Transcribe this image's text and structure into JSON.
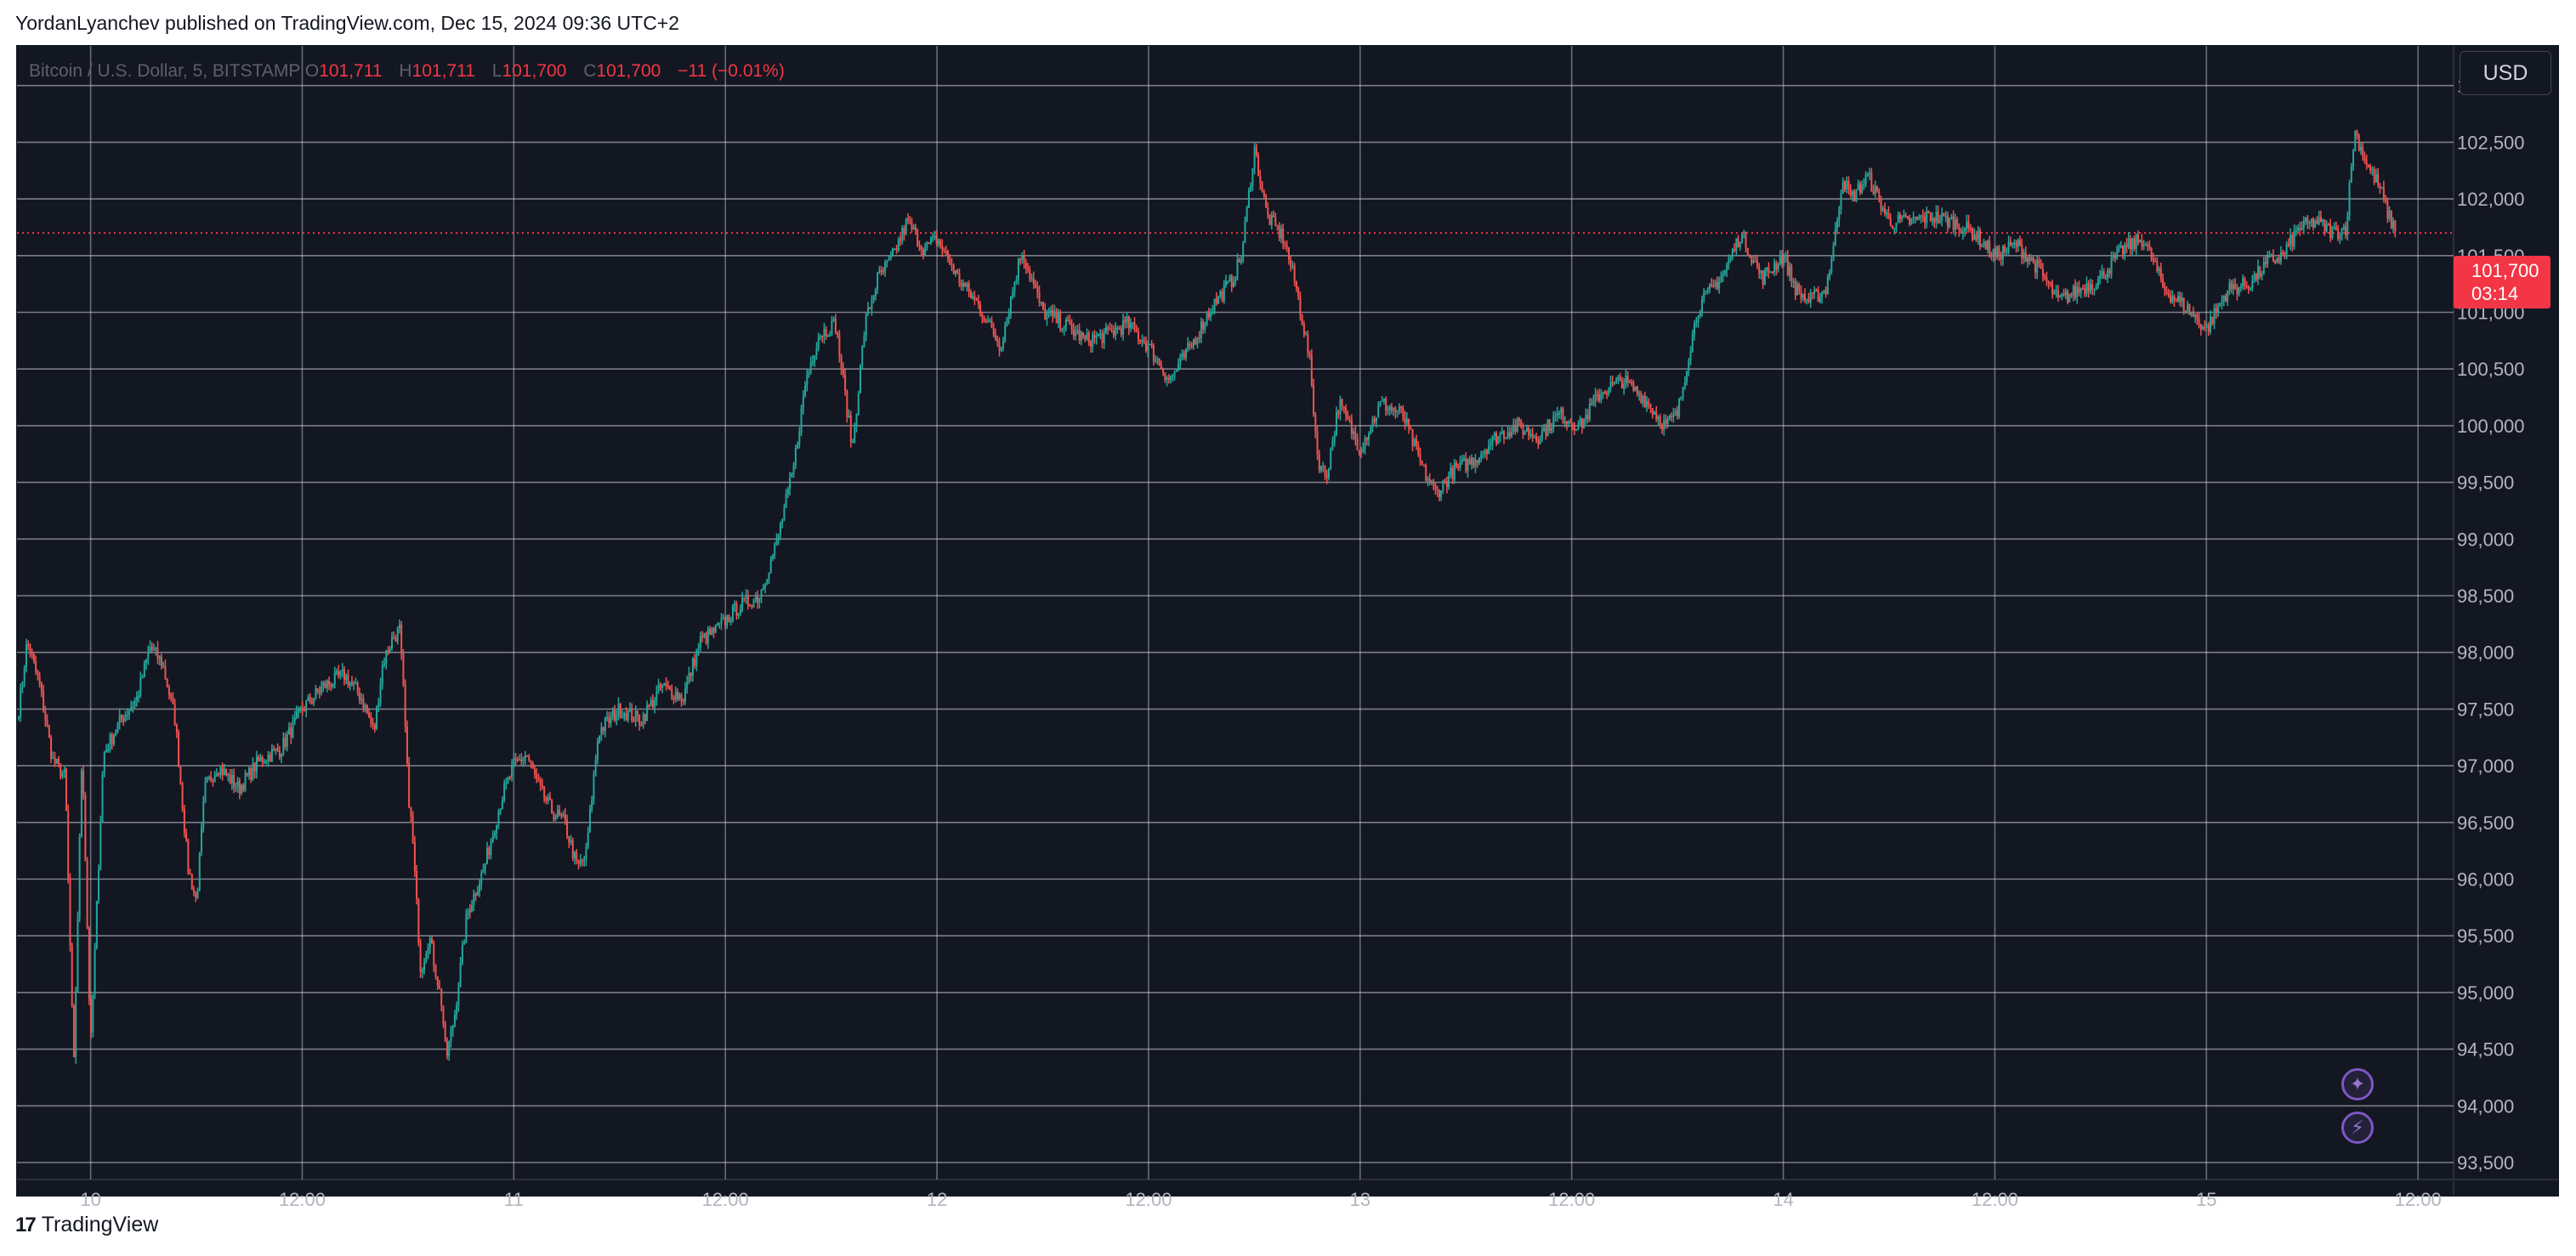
{
  "header": {
    "published_line": "YordanLyanchev published on TradingView.com, Dec 15, 2024 09:36 UTC+2"
  },
  "legend": {
    "symbol": "Bitcoin / U.S. Dollar, 5, BITSTAMP",
    "open_label": "O",
    "open": "101,711",
    "high_label": "H",
    "high": "101,711",
    "low_label": "L",
    "low": "101,700",
    "close_label": "C",
    "close": "101,700",
    "change": "−11 (−0.01%)"
  },
  "currency": "USD",
  "price_tag": {
    "price": "101,700",
    "countdown": "03:14"
  },
  "brand": {
    "name": "TradingView"
  },
  "icons": {
    "sparkle": "sparkle-icon",
    "lightning": "lightning-icon",
    "logo": "tradingview-logo-icon"
  },
  "colors": {
    "background": "#131722",
    "up": "#26a69a",
    "down": "#ef5350",
    "grid": "#d1d4dc",
    "axis_text": "#b2b5be",
    "price_line": "#f23645",
    "accent": "#7e57c2"
  },
  "chart_data": {
    "type": "candlestick",
    "title": "Bitcoin / U.S. Dollar, 5, BITSTAMP",
    "interval": "5",
    "y_axis_position": "right",
    "y_ticks": [
      "93,500",
      "94,000",
      "94,500",
      "95,000",
      "95,500",
      "96,000",
      "96,500",
      "97,000",
      "97,500",
      "98,000",
      "98,500",
      "99,000",
      "99,500",
      "100,000",
      "100,500",
      "101,000",
      "101,500",
      "102,000",
      "102,500",
      "103,000"
    ],
    "x_ticks": [
      "10",
      "12:00",
      "11",
      "12:00",
      "12",
      "12:00",
      "13",
      "12:00",
      "14",
      "12:00",
      "15",
      "12:00"
    ],
    "ylim": [
      93350,
      103350
    ],
    "x_range_days": [
      -0.174,
      5.584
    ],
    "last_price": 101700,
    "grid": true,
    "up_color": "#26a69a",
    "down_color": "#ef5350",
    "series": [
      {
        "values": [
          [
            -0.17,
            97500
          ],
          [
            -0.15,
            98100
          ],
          [
            -0.12,
            97700
          ],
          [
            -0.09,
            97050
          ],
          [
            -0.06,
            96900
          ],
          [
            -0.04,
            94300
          ],
          [
            -0.02,
            97200
          ],
          [
            0.0,
            94500
          ],
          [
            0.03,
            97100
          ],
          [
            0.07,
            97400
          ],
          [
            0.11,
            97600
          ],
          [
            0.14,
            98050
          ],
          [
            0.17,
            97900
          ],
          [
            0.2,
            97400
          ],
          [
            0.23,
            96100
          ],
          [
            0.25,
            95800
          ],
          [
            0.27,
            96800
          ],
          [
            0.3,
            97000
          ],
          [
            0.35,
            96800
          ],
          [
            0.4,
            97050
          ],
          [
            0.45,
            97150
          ],
          [
            0.5,
            97500
          ],
          [
            0.55,
            97700
          ],
          [
            0.6,
            97800
          ],
          [
            0.64,
            97600
          ],
          [
            0.67,
            97300
          ],
          [
            0.69,
            97900
          ],
          [
            0.71,
            98100
          ],
          [
            0.73,
            98200
          ],
          [
            0.74,
            97600
          ],
          [
            0.75,
            96800
          ],
          [
            0.76,
            96400
          ],
          [
            0.78,
            95200
          ],
          [
            0.8,
            95500
          ],
          [
            0.83,
            94900
          ],
          [
            0.84,
            94400
          ],
          [
            0.86,
            94800
          ],
          [
            0.89,
            95700
          ],
          [
            0.93,
            96100
          ],
          [
            0.97,
            96700
          ],
          [
            1.0,
            97000
          ],
          [
            1.03,
            97100
          ],
          [
            1.06,
            96800
          ],
          [
            1.09,
            96600
          ],
          [
            1.12,
            96500
          ],
          [
            1.15,
            96100
          ],
          [
            1.17,
            96200
          ],
          [
            1.2,
            97300
          ],
          [
            1.25,
            97500
          ],
          [
            1.3,
            97400
          ],
          [
            1.35,
            97700
          ],
          [
            1.4,
            97600
          ],
          [
            1.44,
            98100
          ],
          [
            1.48,
            98200
          ],
          [
            1.53,
            98400
          ],
          [
            1.58,
            98500
          ],
          [
            1.62,
            98950
          ],
          [
            1.66,
            99600
          ],
          [
            1.69,
            100400
          ],
          [
            1.72,
            100800
          ],
          [
            1.76,
            100900
          ],
          [
            1.8,
            99800
          ],
          [
            1.83,
            100900
          ],
          [
            1.86,
            101300
          ],
          [
            1.89,
            101450
          ],
          [
            1.93,
            101800
          ],
          [
            1.97,
            101550
          ],
          [
            2.0,
            101650
          ],
          [
            2.05,
            101300
          ],
          [
            2.1,
            101050
          ],
          [
            2.15,
            100700
          ],
          [
            2.2,
            101550
          ],
          [
            2.25,
            101000
          ],
          [
            2.3,
            100900
          ],
          [
            2.35,
            100750
          ],
          [
            2.4,
            100800
          ],
          [
            2.45,
            100900
          ],
          [
            2.5,
            100700
          ],
          [
            2.55,
            100400
          ],
          [
            2.6,
            100700
          ],
          [
            2.65,
            101050
          ],
          [
            2.7,
            101300
          ],
          [
            2.72,
            101500
          ],
          [
            2.75,
            102450
          ],
          [
            2.78,
            101850
          ],
          [
            2.82,
            101650
          ],
          [
            2.85,
            101200
          ],
          [
            2.88,
            100600
          ],
          [
            2.9,
            99700
          ],
          [
            2.92,
            99550
          ],
          [
            2.95,
            100200
          ],
          [
            3.0,
            99800
          ],
          [
            3.05,
            100200
          ],
          [
            3.1,
            100100
          ],
          [
            3.15,
            99600
          ],
          [
            3.18,
            99400
          ],
          [
            3.22,
            99600
          ],
          [
            3.27,
            99700
          ],
          [
            3.32,
            99900
          ],
          [
            3.37,
            100000
          ],
          [
            3.42,
            99900
          ],
          [
            3.47,
            100100
          ],
          [
            3.52,
            100000
          ],
          [
            3.57,
            100300
          ],
          [
            3.62,
            100400
          ],
          [
            3.67,
            100250
          ],
          [
            3.72,
            100000
          ],
          [
            3.75,
            100100
          ],
          [
            3.78,
            100700
          ],
          [
            3.8,
            101050
          ],
          [
            3.83,
            101200
          ],
          [
            3.86,
            101350
          ],
          [
            3.9,
            101700
          ],
          [
            3.95,
            101300
          ],
          [
            4.0,
            101500
          ],
          [
            4.03,
            101200
          ],
          [
            4.06,
            101100
          ],
          [
            4.1,
            101200
          ],
          [
            4.12,
            101600
          ],
          [
            4.14,
            102200
          ],
          [
            4.16,
            102000
          ],
          [
            4.2,
            102200
          ],
          [
            4.25,
            101800
          ],
          [
            4.3,
            101800
          ],
          [
            4.35,
            101850
          ],
          [
            4.4,
            101800
          ],
          [
            4.45,
            101700
          ],
          [
            4.5,
            101500
          ],
          [
            4.55,
            101600
          ],
          [
            4.6,
            101400
          ],
          [
            4.65,
            101100
          ],
          [
            4.7,
            101200
          ],
          [
            4.75,
            101300
          ],
          [
            4.8,
            101550
          ],
          [
            4.85,
            101650
          ],
          [
            4.88,
            101400
          ],
          [
            4.9,
            101200
          ],
          [
            4.95,
            101050
          ],
          [
            5.0,
            100850
          ],
          [
            5.05,
            101200
          ],
          [
            5.1,
            101250
          ],
          [
            5.15,
            101450
          ],
          [
            5.18,
            101500
          ],
          [
            5.22,
            101750
          ],
          [
            5.26,
            101800
          ],
          [
            5.3,
            101700
          ],
          [
            5.33,
            101750
          ],
          [
            5.35,
            102600
          ],
          [
            5.38,
            102300
          ],
          [
            5.41,
            102100
          ],
          [
            5.43,
            101850
          ],
          [
            5.45,
            101700
          ]
        ]
      }
    ]
  }
}
